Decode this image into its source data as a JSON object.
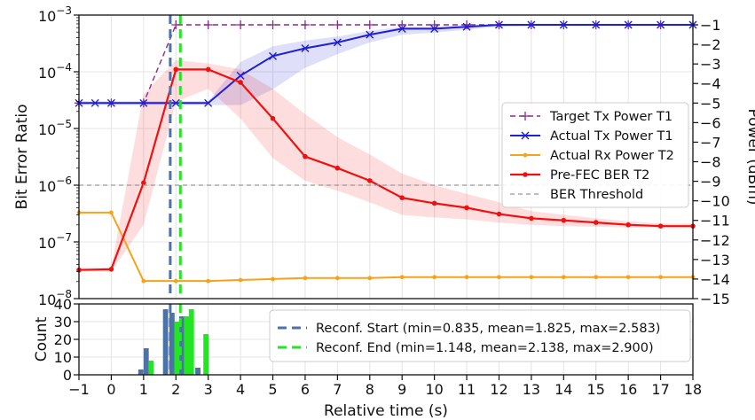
{
  "chart_data": [
    {
      "type": "line",
      "xlabel": "",
      "ylabel": "Bit Error Ratio",
      "y2label": "Power (dBm)",
      "xlim": [
        -1,
        18
      ],
      "ylim_log": [
        1e-08,
        0.001
      ],
      "y2lim": [
        -15,
        -0.5
      ],
      "grid": true,
      "legend_position": "center-right",
      "y_ticks": [
        {
          "v": -3,
          "base": "10",
          "exp": "−3"
        },
        {
          "v": -4,
          "base": "10",
          "exp": "−4"
        },
        {
          "v": -5,
          "base": "10",
          "exp": "−5"
        },
        {
          "v": -6,
          "base": "10",
          "exp": "−6"
        },
        {
          "v": -7,
          "base": "10",
          "exp": "−7"
        },
        {
          "v": -8,
          "base": "10",
          "exp": "−8"
        }
      ],
      "y2_ticks": [
        "−1",
        "−2",
        "−3",
        "−4",
        "−5",
        "−6",
        "−7",
        "−8",
        "−9",
        "−10",
        "−11",
        "−12",
        "−13",
        "−14",
        "−15"
      ],
      "ber_threshold": 1e-06,
      "reconf_start_mean": 1.825,
      "reconf_end_mean": 2.138,
      "series": [
        {
          "name": "Target Tx Power T1",
          "axis": "right",
          "color": "#8b2a8b",
          "x": [
            -1,
            0,
            1,
            2,
            3,
            4,
            5,
            6,
            7,
            8,
            9,
            10,
            11,
            12,
            13,
            14,
            15,
            16,
            17,
            18
          ],
          "y": [
            -5,
            -5,
            -5,
            -1,
            -1,
            -1,
            -1,
            -1,
            -1,
            -1,
            -1,
            -1,
            -1,
            -1,
            -1,
            -1,
            -1,
            -1,
            -1,
            -1
          ]
        },
        {
          "name": "Actual Tx Power T1",
          "axis": "right",
          "color": "#1f1fd6",
          "x": [
            -1,
            -0.5,
            0,
            1,
            2,
            3,
            4,
            5,
            6,
            7,
            8,
            9,
            10,
            11,
            12,
            13,
            14,
            15,
            16,
            17,
            18
          ],
          "y": [
            -5,
            -5,
            -5,
            -5,
            -5,
            -5,
            -3.6,
            -2.6,
            -2.2,
            -1.9,
            -1.5,
            -1.2,
            -1.2,
            -1.1,
            -1.0,
            -1.0,
            -1.0,
            -1.0,
            -1.0,
            -1.0,
            -1.0
          ],
          "band_low": [
            -5.1,
            -5.1,
            -5.1,
            -5.1,
            -5.1,
            -5.1,
            -5.1,
            -4.3,
            -3.2,
            -2.5,
            -1.9,
            -1.5,
            -1.4,
            -1.25,
            -1.1,
            -1.05,
            -1.05,
            -1.05,
            -1.05,
            -1.05,
            -1.05
          ],
          "band_high": [
            -4.9,
            -4.9,
            -4.9,
            -4.9,
            -4.9,
            -4.9,
            -2.9,
            -2.1,
            -1.8,
            -1.6,
            -1.3,
            -1.1,
            -1.1,
            -1.0,
            -0.95,
            -0.95,
            -0.95,
            -0.95,
            -0.95,
            -0.95,
            -0.95
          ]
        },
        {
          "name": "Actual Rx Power T2",
          "axis": "right",
          "color": "#f5a31a",
          "x": [
            -1,
            0,
            1,
            2,
            3,
            4,
            5,
            6,
            7,
            8,
            9,
            10,
            11,
            12,
            13,
            14,
            15,
            16,
            17,
            18
          ],
          "y": [
            -10.6,
            -10.6,
            -14.1,
            -14.1,
            -14.1,
            -14.05,
            -14.0,
            -13.95,
            -13.95,
            -13.95,
            -13.9,
            -13.9,
            -13.9,
            -13.9,
            -13.9,
            -13.9,
            -13.9,
            -13.9,
            -13.9,
            -13.9
          ]
        },
        {
          "name": "Pre-FEC BER T2",
          "axis": "left",
          "color": "#f01010",
          "x": [
            -1,
            0,
            1,
            2,
            3,
            4,
            5,
            6,
            7,
            8,
            9,
            10,
            11,
            12,
            13,
            14,
            15,
            16,
            17,
            18
          ],
          "y": [
            3.2e-08,
            3.3e-08,
            1.1e-06,
            0.00011,
            0.00011,
            6.5e-05,
            1.5e-05,
            3.2e-06,
            2e-06,
            1.2e-06,
            6e-07,
            4.8e-07,
            4e-07,
            3.1e-07,
            2.6e-07,
            2.4e-07,
            2.2e-07,
            2e-07,
            1.9e-07,
            1.9e-07
          ],
          "band_low": [
            3e-08,
            3e-08,
            2e-07,
            3e-05,
            5e-05,
            1.5e-05,
            3e-06,
            1.2e-06,
            8e-07,
            5e-07,
            3e-07,
            2.7e-07,
            2.5e-07,
            2.2e-07,
            2e-07,
            1.9e-07,
            1.85e-07,
            1.8e-07,
            1.75e-07,
            1.75e-07
          ],
          "band_high": [
            3.5e-08,
            3.5e-08,
            4e-05,
            0.00016,
            0.00014,
            0.00011,
            5e-05,
            1.8e-05,
            7e-06,
            3.5e-06,
            1.6e-06,
            1e-06,
            7e-07,
            5e-07,
            3.5e-07,
            3e-07,
            2.6e-07,
            2.3e-07,
            2.1e-07,
            2.1e-07
          ]
        },
        {
          "name": "BER Threshold",
          "axis": "left",
          "color": "#999999",
          "x": [
            -1,
            18
          ],
          "y": [
            1e-06,
            1e-06
          ]
        }
      ]
    },
    {
      "type": "bar",
      "xlabel": "Relative time (s)",
      "ylabel": "Count",
      "xlim": [
        -1,
        18
      ],
      "ylim": [
        0,
        40
      ],
      "y_ticks": [
        0,
        10,
        20,
        30,
        40
      ],
      "x_ticks": [
        "−1",
        "0",
        "1",
        "2",
        "3",
        "4",
        "5",
        "6",
        "7",
        "8",
        "9",
        "10",
        "11",
        "12",
        "13",
        "14",
        "15",
        "16",
        "17",
        "18"
      ],
      "legend_position": "upper-right",
      "series": [
        {
          "name": "Reconf. Start (min=0.835, mean=1.825, max=2.583)",
          "color": "#4d72a8",
          "line_x": 1.825,
          "bars": [
            {
              "x": 0.835,
              "w": 0.16,
              "v": 3
            },
            {
              "x": 1.0,
              "w": 0.16,
              "v": 15
            },
            {
              "x": 1.6,
              "w": 0.16,
              "v": 37
            },
            {
              "x": 1.8,
              "w": 0.16,
              "v": 35
            },
            {
              "x": 2.1,
              "w": 0.16,
              "v": 33
            },
            {
              "x": 2.6,
              "w": 0.16,
              "v": 4
            }
          ]
        },
        {
          "name": "Reconf. End (min=1.148, mean=2.138, max=2.900)",
          "color": "#22e622",
          "line_x": 2.138,
          "bars": [
            {
              "x": 1.15,
              "w": 0.16,
              "v": 8
            },
            {
              "x": 1.95,
              "w": 0.16,
              "v": 30
            },
            {
              "x": 2.25,
              "w": 0.16,
              "v": 33
            },
            {
              "x": 2.4,
              "w": 0.16,
              "v": 37
            },
            {
              "x": 2.85,
              "w": 0.16,
              "v": 23
            }
          ]
        }
      ]
    }
  ]
}
